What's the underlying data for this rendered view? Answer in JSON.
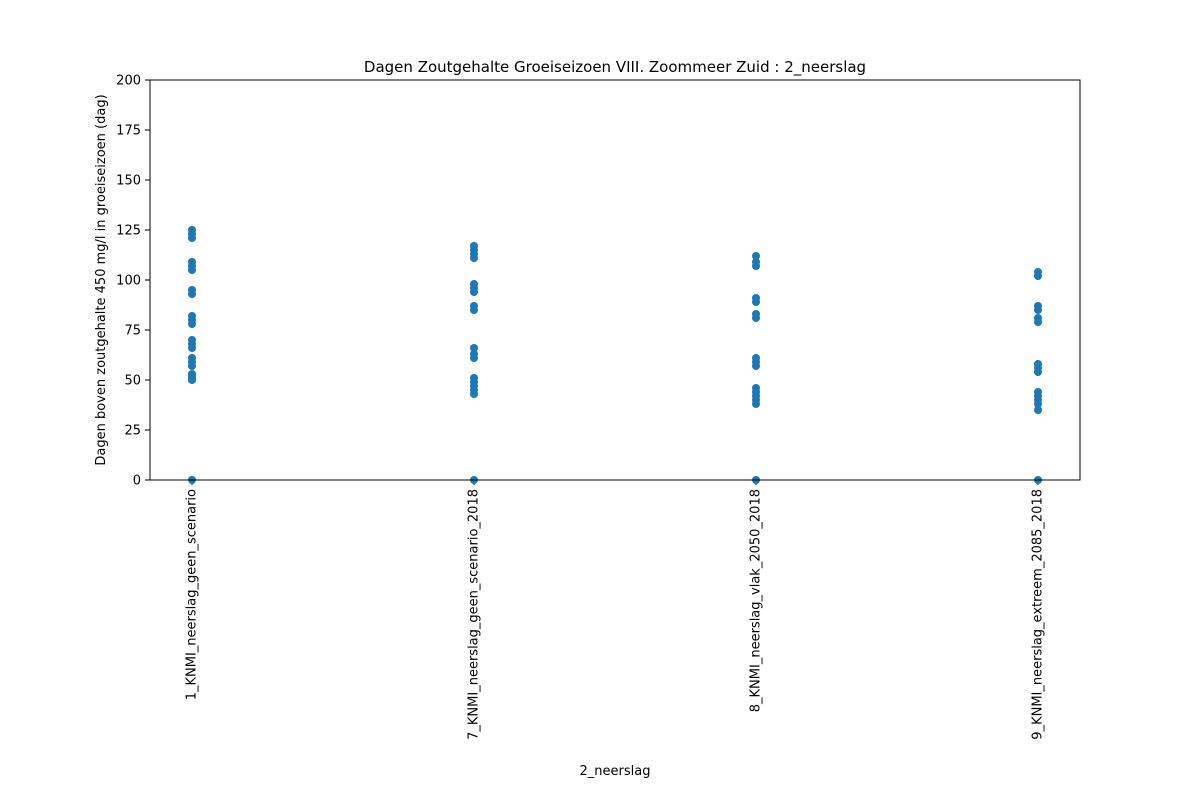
{
  "chart_data": {
    "type": "scatter",
    "title": "Dagen Zoutgehalte Groeiseizoen VIII. Zoommeer Zuid : 2_neerslag",
    "xlabel": "2_neerslag",
    "ylabel": "Dagen boven zoutgehalte 450 mg/l in groeiseizoen (dag)",
    "ylim": [
      0,
      200
    ],
    "yticks": [
      0,
      25,
      50,
      75,
      100,
      125,
      150,
      175,
      200
    ],
    "marker_color": "#1f77b4",
    "categories": [
      "1_KNMI_neerslag_geen_scenario",
      "7_KNMI_neerslag_geen_scenario_2018",
      "8_KNMI_neerslag_vlak_2050_2018",
      "9_KNMI_neerslag_extreem_2085_2018"
    ],
    "series": [
      {
        "name": "1_KNMI_neerslag_geen_scenario",
        "values": [
          0,
          50,
          51,
          52,
          53,
          57,
          59,
          61,
          66,
          68,
          70,
          78,
          80,
          82,
          93,
          95,
          105,
          107,
          109,
          121,
          123,
          125
        ]
      },
      {
        "name": "7_KNMI_neerslag_geen_scenario_2018",
        "values": [
          0,
          43,
          45,
          47,
          49,
          51,
          61,
          63,
          66,
          85,
          87,
          94,
          96,
          98,
          111,
          113,
          115,
          117
        ]
      },
      {
        "name": "8_KNMI_neerslag_vlak_2050_2018",
        "values": [
          0,
          38,
          40,
          42,
          44,
          46,
          57,
          59,
          61,
          81,
          83,
          89,
          91,
          107,
          109,
          112
        ]
      },
      {
        "name": "9_KNMI_neerslag_extreem_2085_2018",
        "values": [
          0,
          35,
          38,
          40,
          42,
          44,
          54,
          56,
          58,
          79,
          81,
          85,
          87,
          102,
          104
        ]
      }
    ]
  }
}
